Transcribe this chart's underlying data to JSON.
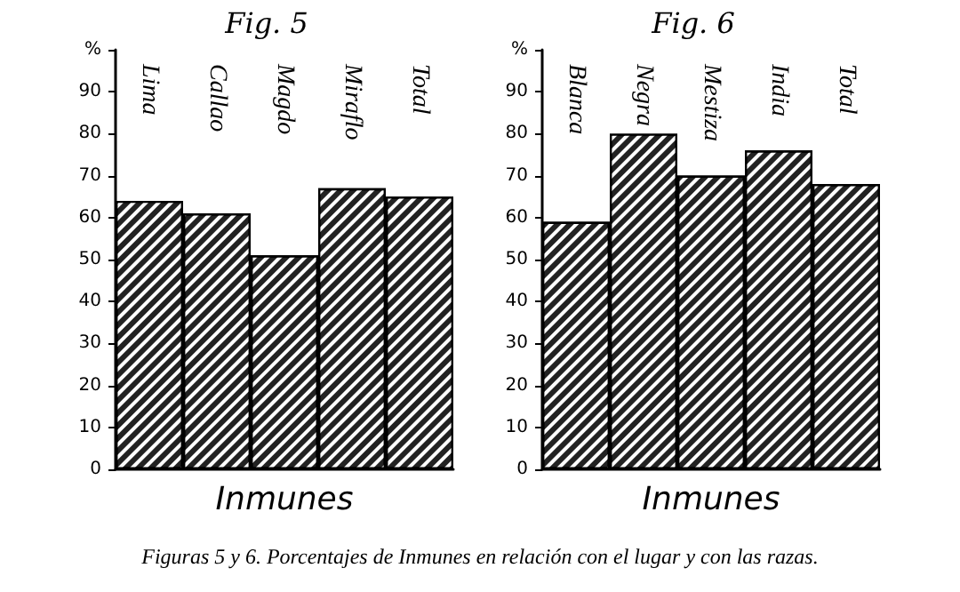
{
  "chart_data": [
    {
      "type": "bar",
      "title": "Fig. 5",
      "xlabel": "Inmunes",
      "categories": [
        "Lima",
        "Callao",
        "Magdo",
        "Miraflo",
        "Total"
      ],
      "values": [
        64,
        61,
        51,
        67,
        65
      ],
      "color": "#222222",
      "ylim": [
        0,
        100
      ],
      "yticks": [
        0,
        10,
        20,
        30,
        40,
        50,
        60,
        70,
        80,
        90,
        {
          "value": 100,
          "label": "%"
        }
      ],
      "grid": false,
      "annotations": [
        "Figuras 5 y 6.  Porcentajes de Inmunes en relación con el lugar y con las razas."
      ]
    },
    {
      "type": "bar",
      "title": "Fig. 6",
      "xlabel": "Inmunes",
      "categories": [
        "Blanca",
        "Negra",
        "Mestiza",
        "India",
        "Total"
      ],
      "values": [
        59,
        80,
        70,
        76,
        68
      ],
      "color": "#222222",
      "ylim": [
        0,
        100
      ],
      "yticks": [
        0,
        10,
        20,
        30,
        40,
        50,
        60,
        70,
        80,
        90,
        {
          "value": 100,
          "label": "%"
        }
      ],
      "grid": false
    }
  ]
}
